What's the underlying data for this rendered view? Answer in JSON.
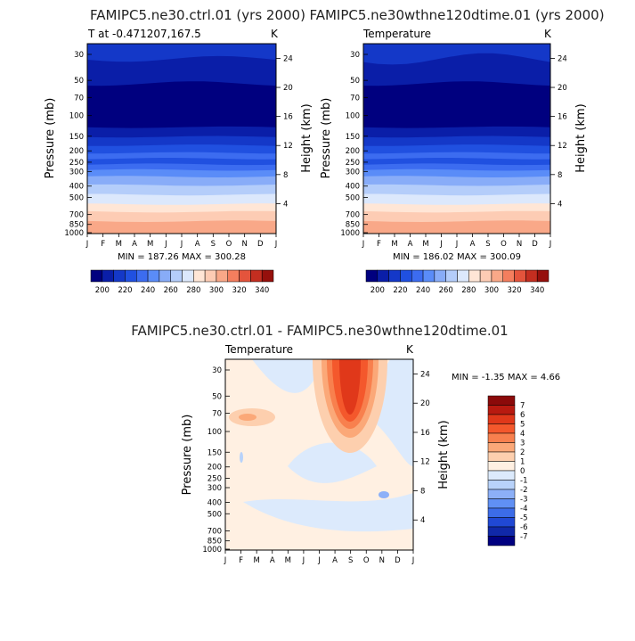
{
  "chart_data": [
    {
      "type": "contour",
      "title": "FAMIPC5.ne30.ctrl.01 (yrs 2000)",
      "subtitle_left": "T at -0.471207,167.5",
      "subtitle_right": "K",
      "ylabel": "Pressure (mb)",
      "ylabel_right": "Height (km)",
      "x_ticks": [
        "J",
        "F",
        "M",
        "A",
        "M",
        "J",
        "J",
        "A",
        "S",
        "O",
        "N",
        "D",
        "J"
      ],
      "pressure_ticks": [
        "30",
        "50",
        "70",
        "100",
        "150",
        "200",
        "250",
        "300",
        "400",
        "500",
        "700",
        "850",
        "1000"
      ],
      "height_ticks": [
        "24",
        "20",
        "16",
        "12",
        "8",
        "4"
      ],
      "min_max_text": "MIN = 187.26  MAX = 300.28",
      "colorbar_labels": [
        "200",
        "220",
        "240",
        "260",
        "280",
        "300",
        "320",
        "340"
      ],
      "colorbar_colors": [
        "#00007f",
        "#0a1ea8",
        "#1438c8",
        "#2050e0",
        "#3c6cf0",
        "#5a8cf8",
        "#88acf8",
        "#b4cdfa",
        "#dce8fc",
        "#ffe6d6",
        "#fdccb4",
        "#f9a888",
        "#f47e5e",
        "#e4543c",
        "#c42e20",
        "#96100c"
      ]
    },
    {
      "type": "contour",
      "title": "FAMIPC5.ne30wthne120dtime.01 (yrs 2000)",
      "subtitle_left": "Temperature",
      "subtitle_right": "K",
      "ylabel": "Pressure (mb)",
      "ylabel_right": "Height (km)",
      "x_ticks": [
        "J",
        "F",
        "M",
        "A",
        "M",
        "J",
        "J",
        "A",
        "S",
        "O",
        "N",
        "D",
        "J"
      ],
      "pressure_ticks": [
        "30",
        "50",
        "70",
        "100",
        "150",
        "200",
        "250",
        "300",
        "400",
        "500",
        "700",
        "850",
        "1000"
      ],
      "height_ticks": [
        "24",
        "20",
        "16",
        "12",
        "8",
        "4"
      ],
      "min_max_text": "MIN = 186.02  MAX = 300.09",
      "colorbar_labels": [
        "200",
        "220",
        "240",
        "260",
        "280",
        "300",
        "320",
        "340"
      ]
    },
    {
      "type": "contour",
      "title": "FAMIPC5.ne30.ctrl.01 - FAMIPC5.ne30wthne120dtime.01",
      "subtitle_left": "Temperature",
      "subtitle_right": "K",
      "ylabel": "Pressure (mb)",
      "ylabel_right": "Height (km)",
      "x_ticks": [
        "J",
        "F",
        "M",
        "A",
        "M",
        "J",
        "J",
        "A",
        "S",
        "O",
        "N",
        "D",
        "J"
      ],
      "pressure_ticks": [
        "30",
        "50",
        "70",
        "100",
        "150",
        "200",
        "250",
        "300",
        "400",
        "500",
        "700",
        "850",
        "1000"
      ],
      "height_ticks": [
        "24",
        "20",
        "16",
        "12",
        "8",
        "4"
      ],
      "min_max_text": "MIN =   -1.35 MAX =    4.66",
      "colorbar_labels": [
        "7",
        "6",
        "5",
        "4",
        "3",
        "2",
        "1",
        "0",
        "-1",
        "-2",
        "-3",
        "-4",
        "-5",
        "-6",
        "-7"
      ],
      "colorbar_colors": [
        "#8b0a0a",
        "#b81a10",
        "#e0381a",
        "#f4582c",
        "#f8804e",
        "#fba878",
        "#fdcfae",
        "#fff0e2",
        "#dceafc",
        "#b8d2fa",
        "#8cb0f8",
        "#6090f4",
        "#3c6ce8",
        "#2048d4",
        "#1028a8",
        "#000080"
      ]
    }
  ]
}
